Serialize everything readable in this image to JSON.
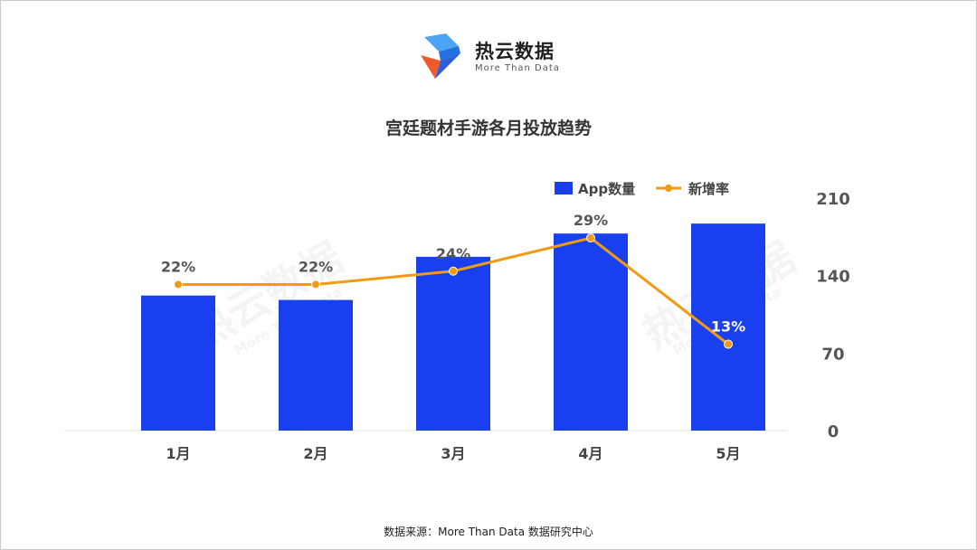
{
  "brand": {
    "name": "热云数据",
    "tagline": "More Than Data",
    "colors": {
      "blue": "#2f8ef0",
      "orange": "#e8562e",
      "navy": "#1a3fd0"
    }
  },
  "source": "数据来源：More Than Data 数据研究中心",
  "chart_data": {
    "type": "bar",
    "title": "宫廷题材手游各月投放趋势",
    "categories": [
      "1月",
      "2月",
      "3月",
      "4月",
      "5月"
    ],
    "series": [
      {
        "name": "App数量",
        "type": "bar",
        "axis": "right",
        "color": "#1840ee",
        "values": [
          122,
          118,
          157,
          178,
          187
        ]
      },
      {
        "name": "新增率",
        "type": "line",
        "color": "#f09a16",
        "values": [
          0.22,
          0.22,
          0.24,
          0.29,
          0.13
        ],
        "labels": [
          "22%",
          "22%",
          "24%",
          "29%",
          "13%"
        ]
      }
    ],
    "y_right": {
      "ticks": [
        0,
        70,
        140,
        210
      ],
      "range": [
        0,
        210
      ]
    },
    "line_range": [
      0.0,
      0.35
    ],
    "legend": "top-right",
    "grid": false
  }
}
